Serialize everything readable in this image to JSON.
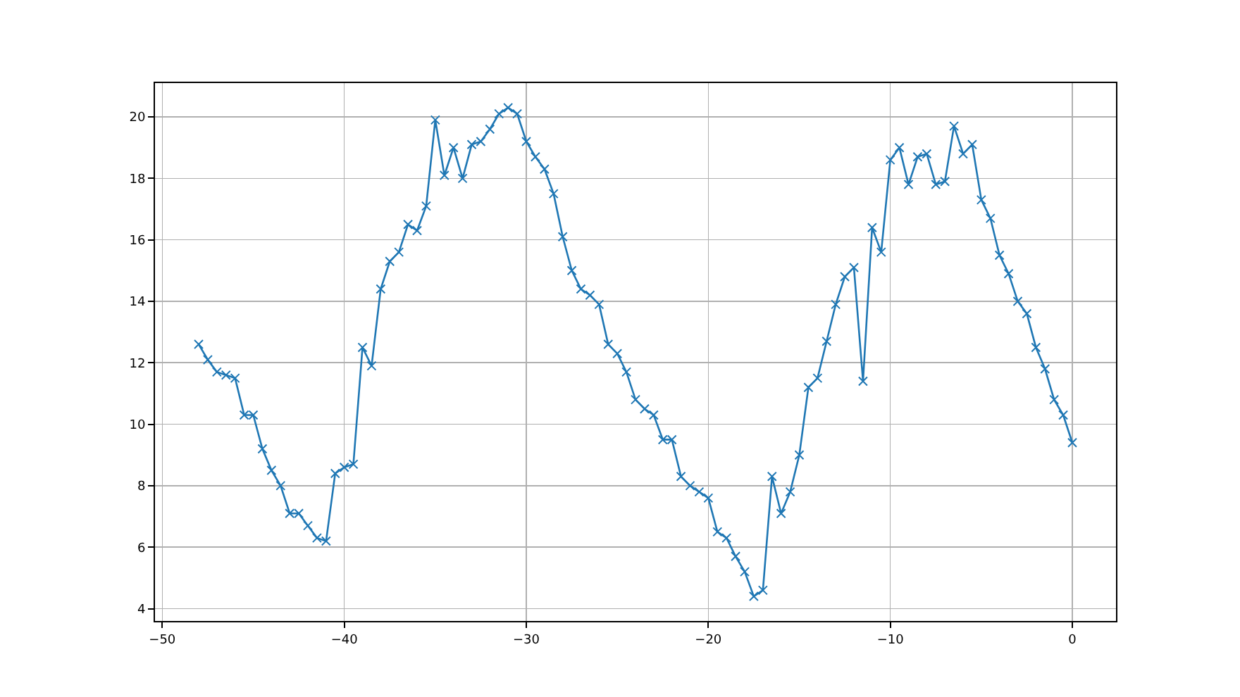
{
  "chart_data": {
    "type": "line",
    "marker": "cross",
    "color": "#1f77b4",
    "grid": true,
    "x": [
      -48,
      -47.5,
      -47,
      -46.5,
      -46,
      -45.5,
      -45,
      -44.5,
      -44,
      -43.5,
      -43,
      -42.5,
      -42,
      -41.5,
      -41,
      -40.5,
      -40,
      -39.5,
      -39,
      -38.5,
      -38,
      -37.5,
      -37,
      -36.5,
      -36,
      -35.5,
      -35,
      -34.5,
      -34,
      -33.5,
      -33,
      -32.5,
      -32,
      -31.5,
      -31,
      -30.5,
      -30,
      -29.5,
      -29,
      -28.5,
      -28,
      -27.5,
      -27,
      -26.5,
      -26,
      -25.5,
      -25,
      -24.5,
      -24,
      -23.5,
      -23,
      -22.5,
      -22,
      -21.5,
      -21,
      -20.5,
      -20,
      -19.5,
      -19,
      -18.5,
      -18,
      -17.5,
      -17,
      -16.5,
      -16,
      -15.5,
      -15,
      -14.5,
      -14,
      -13.5,
      -13,
      -12.5,
      -12,
      -11.5,
      -11,
      -10.5,
      -10,
      -9.5,
      -9,
      -8.5,
      -8,
      -7.5,
      -7,
      -6.5,
      -6,
      -5.5,
      -5,
      -4.5,
      -4,
      -3.5,
      -3,
      -2.5,
      -2,
      -1.5,
      -1,
      -0.5,
      0
    ],
    "values": [
      12.6,
      12.1,
      11.7,
      11.6,
      11.5,
      10.3,
      10.3,
      9.2,
      8.5,
      8.0,
      7.1,
      7.1,
      6.7,
      6.3,
      6.2,
      8.4,
      8.6,
      8.7,
      12.5,
      11.9,
      14.4,
      15.3,
      15.6,
      16.5,
      16.3,
      17.1,
      19.9,
      18.1,
      19.0,
      18.0,
      19.1,
      19.2,
      19.6,
      20.1,
      20.3,
      20.1,
      19.2,
      18.7,
      18.3,
      17.5,
      16.1,
      15.0,
      14.4,
      14.2,
      13.9,
      12.6,
      12.3,
      11.7,
      10.8,
      10.5,
      10.3,
      9.5,
      9.5,
      8.3,
      8.0,
      7.8,
      7.6,
      6.5,
      6.3,
      5.7,
      5.2,
      4.4,
      4.6,
      8.3,
      7.1,
      7.8,
      9.0,
      11.2,
      11.5,
      12.7,
      13.9,
      14.8,
      15.1,
      11.4,
      16.4,
      15.6,
      18.6,
      19.0,
      17.8,
      18.7,
      18.8,
      17.8,
      17.9,
      19.7,
      18.8,
      19.1,
      17.3,
      16.7,
      15.5,
      14.9,
      14.0,
      13.6,
      12.5,
      11.8,
      10.8,
      10.3,
      9.4
    ],
    "xlim": [
      -50.4,
      2.4
    ],
    "ylim": [
      3.6,
      21.1
    ],
    "xticks": [
      {
        "value": -50,
        "label": "−50"
      },
      {
        "value": -40,
        "label": "−40"
      },
      {
        "value": -30,
        "label": "−30"
      },
      {
        "value": -20,
        "label": "−20"
      },
      {
        "value": -10,
        "label": "−10"
      },
      0
    ],
    "yticks": [
      4,
      6,
      8,
      10,
      12,
      14,
      16,
      18,
      20
    ]
  }
}
